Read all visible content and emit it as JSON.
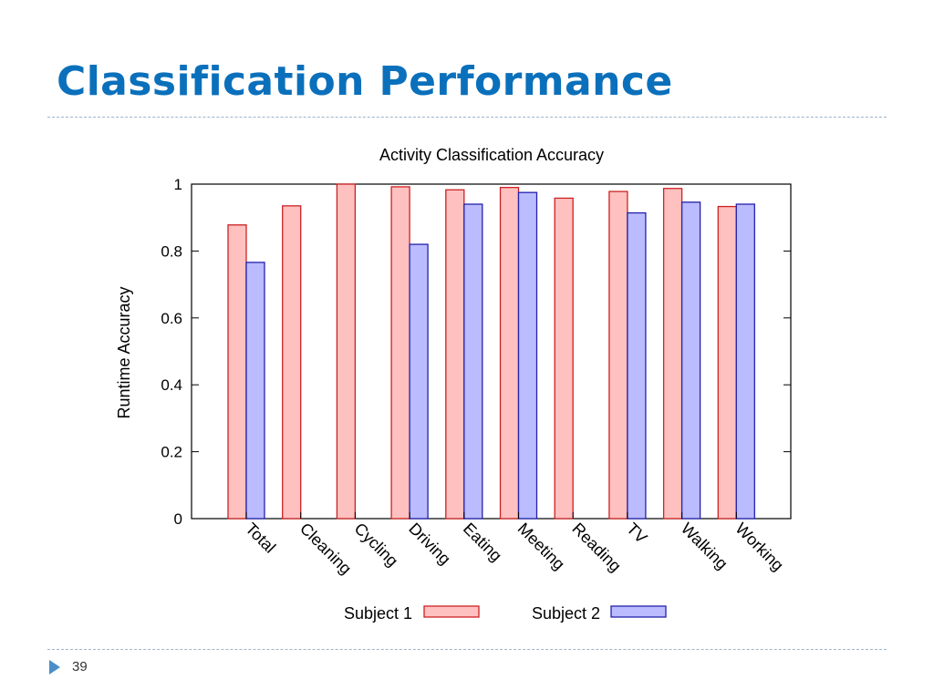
{
  "slide": {
    "title": "Classification Performance",
    "page_number": "39",
    "title_color": "#0b70bb",
    "bullet_color": "#4a8ec9",
    "bullet_icon": "triangle-right-icon"
  },
  "chart_data": {
    "type": "bar",
    "title": "Activity Classification Accuracy",
    "xlabel": "",
    "ylabel": "Runtime Accuracy",
    "ylim": [
      0,
      1
    ],
    "yticks": [
      0,
      0.2,
      0.4,
      0.6,
      0.8,
      1
    ],
    "ytick_labels": [
      "0",
      "0.2",
      "0.4",
      "0.6",
      "0.8",
      "1"
    ],
    "categories": [
      "Total",
      "Cleaning",
      "Cycling",
      "Driving",
      "Eating",
      "Meeting",
      "Reading",
      "TV",
      "Walking",
      "Working"
    ],
    "series": [
      {
        "name": "Subject 1",
        "fill": "#ffc0c0",
        "stroke": "#cc2222",
        "values": [
          0.878,
          0.935,
          1.0,
          0.992,
          0.983,
          0.99,
          0.958,
          0.978,
          0.987,
          0.933
        ]
      },
      {
        "name": "Subject 2",
        "fill": "#bbbbff",
        "stroke": "#2222aa",
        "values": [
          0.766,
          null,
          null,
          0.82,
          0.94,
          0.975,
          null,
          0.914,
          0.946,
          0.94
        ]
      }
    ],
    "legend_position": "bottom",
    "grid": false
  }
}
